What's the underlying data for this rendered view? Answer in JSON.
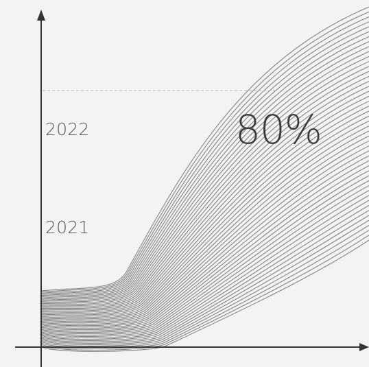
{
  "labels": {
    "year_top": "2022",
    "year_bottom": "2021",
    "percent": "80%"
  },
  "colors": {
    "background": "#f2f3f2",
    "axis": "#333333",
    "wave_stroke": "#6e6e6e",
    "dashed_line": "#b5b5b5",
    "text": "#555555"
  }
}
